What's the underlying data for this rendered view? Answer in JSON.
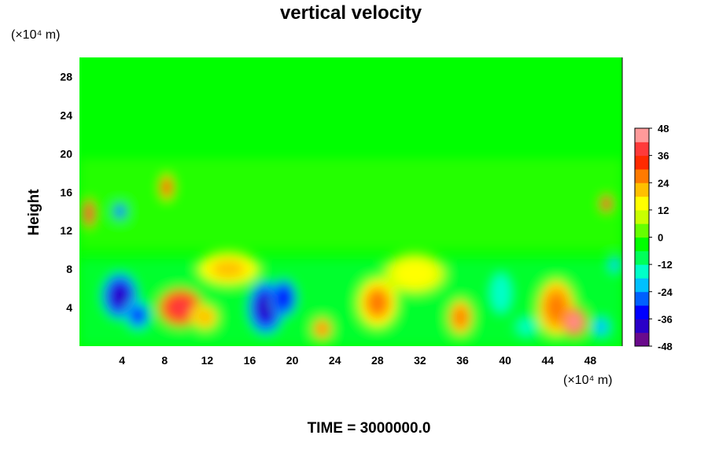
{
  "chart_data": {
    "type": "heatmap",
    "title": "vertical velocity",
    "ylabel": "Height",
    "y_unit_label": "(×10⁴ m)",
    "x_unit_label": "(×10⁴ m)",
    "footer": "TIME = 3000000.0",
    "x_ticks": [
      4,
      8,
      12,
      16,
      20,
      24,
      28,
      32,
      36,
      40,
      44,
      48
    ],
    "y_ticks": [
      4,
      8,
      12,
      16,
      20,
      24,
      28
    ],
    "xlim": [
      0,
      51
    ],
    "ylim": [
      0,
      30
    ],
    "colorbar": {
      "ticks": [
        48,
        36,
        24,
        12,
        0,
        -12,
        -24,
        -36,
        -48
      ],
      "range": [
        -48,
        48
      ],
      "colors": [
        "#6a0a8c",
        "#2a00c8",
        "#0000ff",
        "#0060ff",
        "#00c0ff",
        "#00ffc8",
        "#00ff5a",
        "#00ff00",
        "#66ff00",
        "#c8ff00",
        "#ffff00",
        "#ffc000",
        "#ff7a00",
        "#ff2a00",
        "#ff3a3a",
        "#ff9a9a"
      ]
    },
    "features": [
      {
        "x": 3.8,
        "y": 5.2,
        "value": -40,
        "sx": 1.4,
        "sy": 2.0
      },
      {
        "x": 5.5,
        "y": 3.2,
        "value": -32,
        "sx": 1.0,
        "sy": 1.3
      },
      {
        "x": 9.5,
        "y": 4.0,
        "value": 36,
        "sx": 1.8,
        "sy": 1.7
      },
      {
        "x": 11.8,
        "y": 3.0,
        "value": 22,
        "sx": 1.1,
        "sy": 1.2
      },
      {
        "x": 17.5,
        "y": 4.0,
        "value": -42,
        "sx": 1.4,
        "sy": 2.3
      },
      {
        "x": 19.2,
        "y": 5.0,
        "value": -36,
        "sx": 1.0,
        "sy": 1.6
      },
      {
        "x": 22.8,
        "y": 1.8,
        "value": 28,
        "sx": 0.8,
        "sy": 1.0
      },
      {
        "x": 28.0,
        "y": 4.5,
        "value": 26,
        "sx": 1.6,
        "sy": 2.2
      },
      {
        "x": 35.8,
        "y": 3.0,
        "value": 28,
        "sx": 1.0,
        "sy": 1.6
      },
      {
        "x": 39.6,
        "y": 5.5,
        "value": -18,
        "sx": 1.0,
        "sy": 2.0
      },
      {
        "x": 44.8,
        "y": 4.0,
        "value": 28,
        "sx": 1.5,
        "sy": 2.5
      },
      {
        "x": 46.5,
        "y": 2.5,
        "value": 42,
        "sx": 1.0,
        "sy": 1.3
      },
      {
        "x": 49.0,
        "y": 2.0,
        "value": -22,
        "sx": 0.8,
        "sy": 1.0
      },
      {
        "x": 0.9,
        "y": 13.8,
        "value": 40,
        "sx": 0.5,
        "sy": 1.3
      },
      {
        "x": 3.8,
        "y": 14.0,
        "value": -30,
        "sx": 0.6,
        "sy": 0.8
      },
      {
        "x": 8.2,
        "y": 16.5,
        "value": 34,
        "sx": 0.6,
        "sy": 1.2
      },
      {
        "x": 49.5,
        "y": 14.8,
        "value": 38,
        "sx": 0.5,
        "sy": 0.8
      },
      {
        "x": 50.3,
        "y": 8.5,
        "value": -24,
        "sx": 0.5,
        "sy": 0.8
      },
      {
        "x": 14.0,
        "y": 8.0,
        "value": 18,
        "sx": 2.5,
        "sy": 1.5
      },
      {
        "x": 31.5,
        "y": 7.5,
        "value": 16,
        "sx": 2.5,
        "sy": 1.8
      },
      {
        "x": 42.0,
        "y": 2.0,
        "value": -14,
        "sx": 1.2,
        "sy": 1.2
      }
    ]
  }
}
